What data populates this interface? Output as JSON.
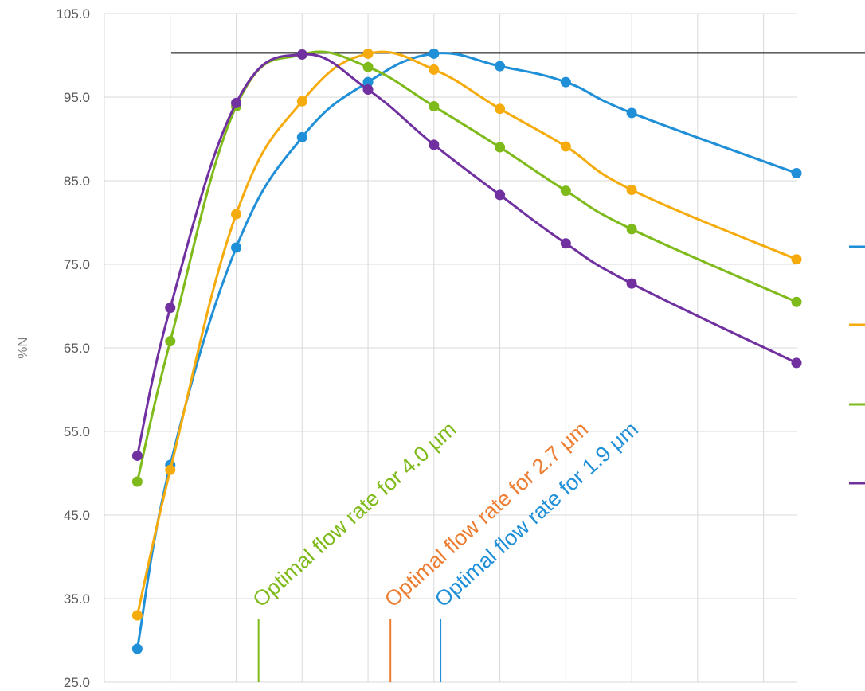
{
  "chart_data": {
    "type": "line",
    "ylabel": "%N",
    "ylim": [
      25,
      105
    ],
    "yticks": [
      "25.0",
      "35.0",
      "45.0",
      "55.0",
      "65.0",
      "75.0",
      "85.0",
      "95.0",
      "105.0"
    ],
    "grid": true,
    "reference_line_y": 100.3,
    "series": [
      {
        "color": "#1f8fd8",
        "points": [
          [
            0,
            29.0
          ],
          [
            0.25,
            51.0
          ],
          [
            0.75,
            77.0
          ],
          [
            1.25,
            90.2
          ],
          [
            1.75,
            96.8
          ],
          [
            2.25,
            100.2
          ],
          [
            2.75,
            98.7
          ],
          [
            3.25,
            96.8
          ],
          [
            3.75,
            93.1
          ],
          [
            5.0,
            85.9
          ]
        ]
      },
      {
        "color": "#f5ab0c",
        "points": [
          [
            0,
            33.0
          ],
          [
            0.25,
            50.4
          ],
          [
            0.75,
            81.0
          ],
          [
            1.25,
            94.5
          ],
          [
            1.75,
            100.2
          ],
          [
            2.25,
            98.3
          ],
          [
            2.75,
            93.6
          ],
          [
            3.25,
            89.1
          ],
          [
            3.75,
            83.9
          ],
          [
            5.0,
            75.6
          ]
        ]
      },
      {
        "color": "#7fba1b",
        "points": [
          [
            0,
            49.0
          ],
          [
            0.25,
            65.8
          ],
          [
            0.75,
            93.9
          ],
          [
            1.25,
            100.1
          ],
          [
            1.75,
            98.6
          ],
          [
            2.25,
            93.9
          ],
          [
            2.75,
            89.0
          ],
          [
            3.25,
            83.8
          ],
          [
            3.75,
            79.2
          ],
          [
            5.0,
            70.5
          ]
        ]
      },
      {
        "color": "#7030a0",
        "points": [
          [
            0,
            52.1
          ],
          [
            0.25,
            69.8
          ],
          [
            0.75,
            94.3
          ],
          [
            1.25,
            100.1
          ],
          [
            1.75,
            95.9
          ],
          [
            2.25,
            89.3
          ],
          [
            2.75,
            83.3
          ],
          [
            3.25,
            77.5
          ],
          [
            3.75,
            72.7
          ],
          [
            5.0,
            63.2
          ]
        ]
      }
    ],
    "annotations": [
      {
        "text": "Optimal flow rate for 4.0 μm",
        "color": "#7fba1b",
        "x": 0.92
      },
      {
        "text": "Optimal flow rate for 2.7 μm",
        "color": "#ed7d31",
        "x": 1.92
      },
      {
        "text": "Optimal flow rate for 1.9 μm",
        "color": "#1f8fd8",
        "x": 2.3
      }
    ],
    "legend": {
      "placement": "right",
      "colors": [
        "#1f8fd8",
        "#f5ab0c",
        "#7fba1b",
        "#7030a0"
      ]
    }
  }
}
